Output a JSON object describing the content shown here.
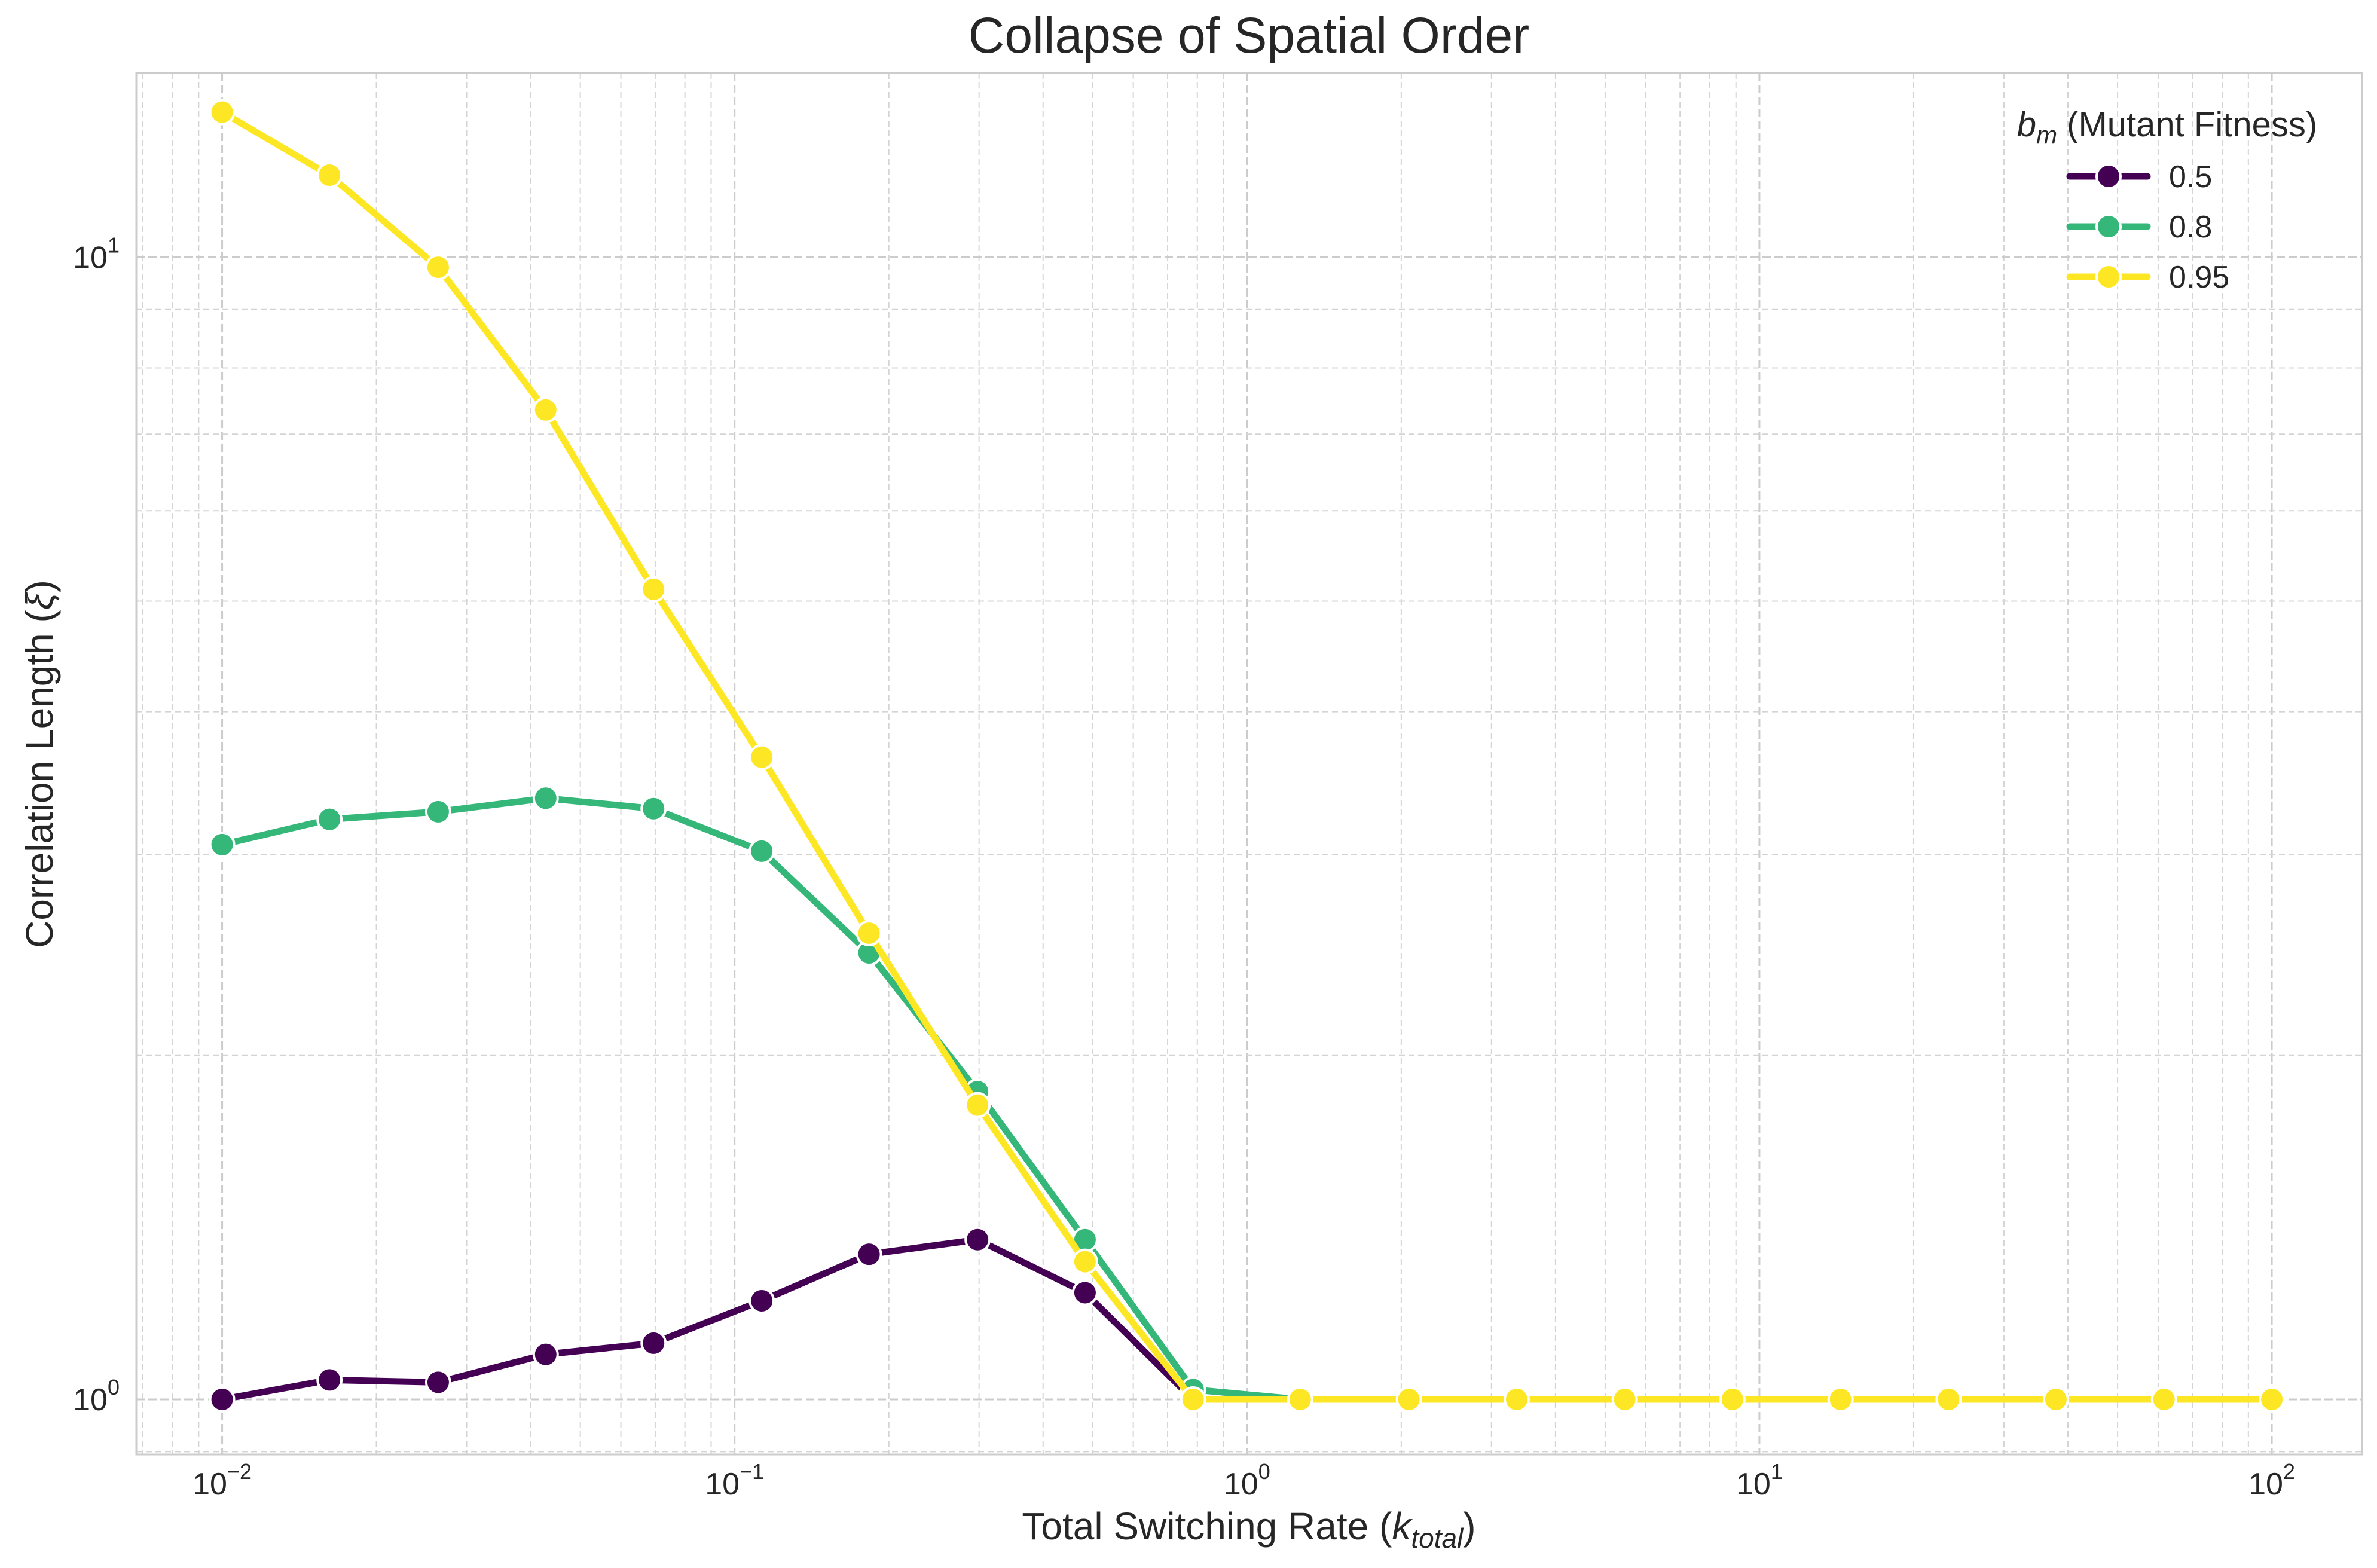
{
  "chart_data": {
    "type": "line",
    "title": "Collapse of Spatial Order",
    "xlabel": "Total Switching Rate (",
    "xlabel_math": "k",
    "xlabel_sub": "total",
    "xlabel_end": ")",
    "ylabel": "Correlation Length (",
    "ylabel_math": "ξ",
    "ylabel_end": ")",
    "xscale": "log",
    "yscale": "log",
    "xlim": [
      0.0068,
      150
    ],
    "ylim": [
      0.895,
      14.5
    ],
    "grid": true,
    "legend_position": "top-right",
    "legend_title": {
      "math": "b",
      "sub": "m",
      "text": " (Mutant Fitness)"
    },
    "x_ticks": [
      {
        "base": "10",
        "exp": "−2",
        "value": 0.01
      },
      {
        "base": "10",
        "exp": "−1",
        "value": 0.1
      },
      {
        "base": "10",
        "exp": "0",
        "value": 1
      },
      {
        "base": "10",
        "exp": "1",
        "value": 10
      },
      {
        "base": "10",
        "exp": "2",
        "value": 100
      }
    ],
    "y_ticks": [
      {
        "base": "10",
        "exp": "0",
        "value": 1
      },
      {
        "base": "10",
        "exp": "1",
        "value": 10
      }
    ],
    "x": [
      0.01,
      0.0162,
      0.0264,
      0.0428,
      0.0695,
      0.113,
      0.183,
      0.298,
      0.483,
      0.785,
      1.27,
      2.07,
      3.36,
      5.46,
      8.86,
      14.4,
      23.4,
      37.9,
      61.6,
      100
    ],
    "series": [
      {
        "name": "0.5",
        "color": "#440154",
        "values": [
          1.0,
          1.04,
          1.035,
          1.095,
          1.12,
          1.22,
          1.34,
          1.38,
          1.24,
          1.0,
          1.0,
          1.0,
          1.0,
          1.0,
          1.0,
          1.0,
          1.0,
          1.0,
          1.0,
          1.0
        ]
      },
      {
        "name": "0.8",
        "color": "#35b779",
        "values": [
          3.06,
          3.22,
          3.27,
          3.36,
          3.29,
          3.02,
          2.46,
          1.86,
          1.38,
          1.02,
          1.0,
          1.0,
          1.0,
          1.0,
          1.0,
          1.0,
          1.0,
          1.0,
          1.0,
          1.0
        ]
      },
      {
        "name": "0.95",
        "color": "#fde725",
        "values": [
          13.4,
          11.8,
          9.8,
          7.35,
          5.12,
          3.65,
          2.56,
          1.81,
          1.32,
          1.0,
          1.0,
          1.0,
          1.0,
          1.0,
          1.0,
          1.0,
          1.0,
          1.0,
          1.0,
          1.0
        ]
      }
    ]
  }
}
